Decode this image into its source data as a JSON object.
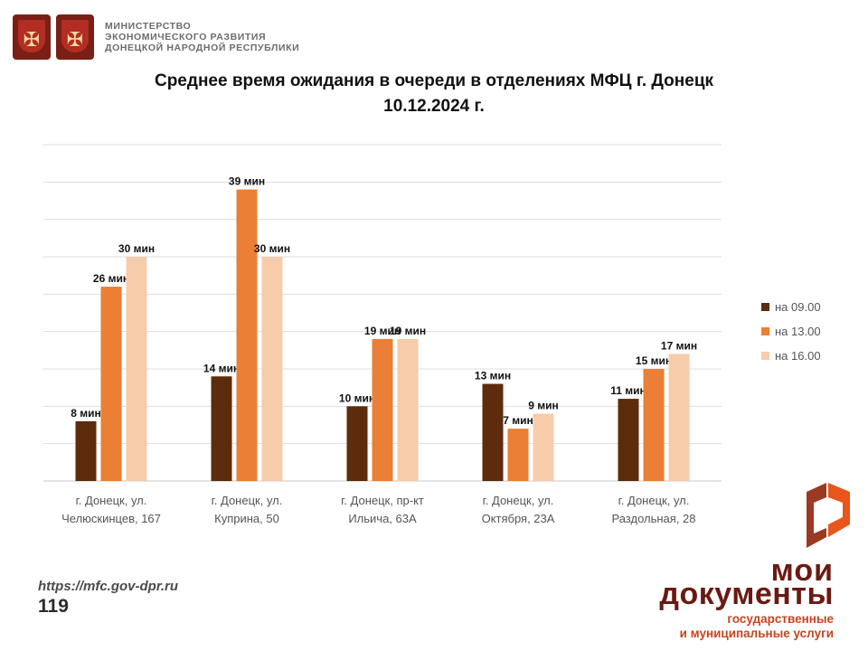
{
  "header": {
    "ministry_lines": [
      "МИНИСТЕРСТВО",
      "ЭКОНОМИЧЕСКОГО РАЗВИТИЯ",
      "ДОНЕЦКОЙ НАРОДНОЙ РЕСПУБЛИКИ"
    ]
  },
  "title_lines": [
    "Среднее время ожидания в очереди в отделениях МФЦ г. Донецк",
    "10.12.2024 г."
  ],
  "chart_data": {
    "type": "bar",
    "title": "Среднее время ожидания в очереди в отделениях МФЦ г. Донецк 10.12.2024 г.",
    "categories": [
      [
        "г. Донецк, ул.",
        "Челюскинцев, 167"
      ],
      [
        "г. Донецк, ул.",
        "Куприна, 50"
      ],
      [
        "г. Донецк, пр-кт",
        "Ильича, 63А"
      ],
      [
        "г. Донецк, ул.",
        "Октября, 23А"
      ],
      [
        "г. Донецк, ул.",
        "Раздольная, 28"
      ]
    ],
    "series": [
      {
        "name": "на 09.00",
        "color": "#5c2c0c",
        "values": [
          8,
          14,
          10,
          13,
          11
        ]
      },
      {
        "name": "на 13.00",
        "color": "#ea7f35",
        "values": [
          26,
          39,
          19,
          7,
          15
        ]
      },
      {
        "name": "на 16.00",
        "color": "#f6ccab",
        "values": [
          30,
          30,
          19,
          9,
          17
        ]
      }
    ],
    "data_label_suffix": " мин",
    "ylim": [
      0,
      45
    ],
    "grid": true,
    "legend_position": "right",
    "xlabel": "",
    "ylabel": ""
  },
  "footer": {
    "url": "https://mfc.gov-dpr.ru",
    "page_number": "119"
  },
  "logo": {
    "line1": "мои",
    "line2": "документы",
    "line3": "государственные",
    "line4": "и муниципальные услуги",
    "colors": {
      "dark": "#6a1a12",
      "orange": "#c7441e"
    }
  }
}
